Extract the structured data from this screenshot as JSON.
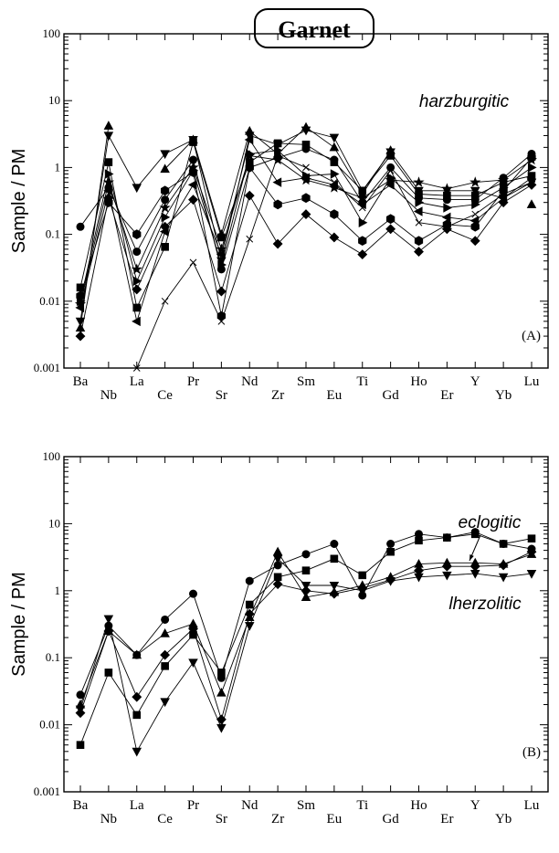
{
  "figure": {
    "title": "Garnet"
  },
  "chart_data": [
    {
      "type": "line",
      "panel_label": "(A)",
      "ylabel": "Sample / PM",
      "yscale": "log",
      "ylim": [
        0.001,
        100
      ],
      "yticks": [
        "0.001",
        "0.01",
        "0.1",
        "1",
        "10",
        "100"
      ],
      "categories": [
        "Ba",
        "Nb",
        "La",
        "Ce",
        "Pr",
        "Sr",
        "Nd",
        "Zr",
        "Sm",
        "Eu",
        "Ti",
        "Gd",
        "Ho",
        "Er",
        "Y",
        "Yb",
        "Lu"
      ],
      "annotations": [
        {
          "text": "harzburgitic"
        }
      ],
      "series": [
        {
          "marker": "triangle-up",
          "values": [
            0.004,
            4.2,
            null,
            0.95,
            2.6,
            0.1,
            3.5,
            1.6,
            4.0,
            2.0,
            0.4,
            1.8,
            null,
            null,
            null,
            null,
            0.28
          ]
        },
        {
          "marker": "triangle-down",
          "values": [
            0.005,
            3.0,
            0.5,
            1.6,
            2.6,
            0.04,
            3.0,
            2.2,
            3.6,
            2.8,
            0.45,
            1.7,
            0.45,
            0.45,
            0.45,
            0.35,
            0.6
          ]
        },
        {
          "marker": "square",
          "values": [
            0.016,
            1.2,
            0.008,
            0.065,
            2.4,
            0.09,
            1.2,
            2.3,
            2.2,
            1.2,
            0.45,
            1.5,
            0.4,
            0.38,
            0.38,
            0.6,
            0.75
          ]
        },
        {
          "marker": "circle",
          "values": [
            0.13,
            0.5,
            0.055,
            0.33,
            1.3,
            0.03,
            1.0,
            1.4,
            1.9,
            1.3,
            0.3,
            1.0,
            0.35,
            0.33,
            0.33,
            0.7,
            1.6
          ]
        },
        {
          "marker": "diamond",
          "values": [
            0.003,
            0.35,
            0.015,
            0.13,
            0.33,
            0.014,
            0.38,
            0.072,
            0.2,
            0.09,
            0.05,
            0.12,
            0.055,
            0.12,
            0.08,
            0.3,
            0.55
          ]
        },
        {
          "marker": "hexagon",
          "values": [
            0.012,
            0.3,
            0.1,
            0.45,
            0.85,
            0.006,
            1.0,
            0.28,
            0.35,
            0.2,
            0.08,
            0.17,
            0.08,
            0.14,
            0.13,
            0.45,
            1.4
          ]
        },
        {
          "marker": "triangle-left",
          "values": [
            0.008,
            0.45,
            0.005,
            0.11,
            0.55,
            0.05,
            2.6,
            0.6,
            0.7,
            0.55,
            0.28,
            0.55,
            0.22,
            0.18,
            0.16,
            0.35,
            0.7
          ]
        },
        {
          "marker": "triangle-right",
          "values": [
            0.01,
            0.8,
            0.02,
            0.18,
            0.9,
            0.035,
            1.6,
            1.8,
            0.75,
            0.8,
            0.15,
            0.7,
            0.3,
            0.25,
            0.28,
            0.5,
            1.0
          ]
        },
        {
          "marker": "star",
          "values": [
            0.009,
            0.6,
            0.03,
            0.25,
            1.0,
            0.06,
            1.5,
            1.3,
            0.65,
            0.5,
            0.35,
            0.65,
            0.6,
            0.48,
            0.6,
            0.65,
            1.3
          ]
        },
        {
          "marker": "x",
          "values": [
            null,
            null,
            0.001,
            0.01,
            0.038,
            0.005,
            0.085,
            1.5,
            1.0,
            0.6,
            0.25,
            0.9,
            0.15,
            0.13,
            0.2,
            0.4,
            0.6
          ]
        }
      ]
    },
    {
      "type": "line",
      "panel_label": "(B)",
      "ylabel": "Sample / PM",
      "yscale": "log",
      "ylim": [
        0.001,
        100
      ],
      "yticks": [
        "0.001",
        "0.01",
        "0.1",
        "1",
        "10",
        "100"
      ],
      "categories": [
        "Ba",
        "Nb",
        "La",
        "Ce",
        "Pr",
        "Sr",
        "Nd",
        "Zr",
        "Sm",
        "Eu",
        "Ti",
        "Gd",
        "Ho",
        "Er",
        "Y",
        "Yb",
        "Lu"
      ],
      "annotations": [
        {
          "text": "eclogitic"
        },
        {
          "text": "lherzolitic"
        }
      ],
      "series": [
        {
          "marker": "circle",
          "values": [
            0.028,
            0.3,
            0.11,
            0.37,
            0.9,
            0.05,
            1.4,
            2.4,
            3.5,
            5.0,
            0.85,
            5.0,
            7.0,
            6.2,
            7.5,
            5.0,
            4.2
          ]
        },
        {
          "marker": "square",
          "values": [
            0.005,
            0.06,
            0.014,
            0.075,
            0.22,
            0.06,
            0.62,
            1.6,
            2.0,
            3.0,
            1.7,
            3.8,
            5.6,
            6.2,
            7.0,
            5.0,
            6.0
          ]
        },
        {
          "marker": "triangle-up",
          "values": [
            0.02,
            0.25,
            0.11,
            0.23,
            0.32,
            0.03,
            0.4,
            3.8,
            0.8,
            0.95,
            1.2,
            1.6,
            2.5,
            2.6,
            2.6,
            2.5,
            3.5
          ]
        },
        {
          "marker": "diamond",
          "values": [
            0.015,
            0.25,
            0.026,
            0.11,
            0.27,
            0.012,
            0.45,
            1.25,
            1.0,
            0.9,
            1.1,
            1.45,
            2.0,
            2.3,
            2.3,
            2.4,
            3.8
          ]
        },
        {
          "marker": "triangle-down",
          "values": [
            0.017,
            0.38,
            0.004,
            0.022,
            0.085,
            0.009,
            0.3,
            3.0,
            1.2,
            1.2,
            1.0,
            1.4,
            1.6,
            1.7,
            1.8,
            1.6,
            1.8
          ]
        }
      ]
    }
  ]
}
